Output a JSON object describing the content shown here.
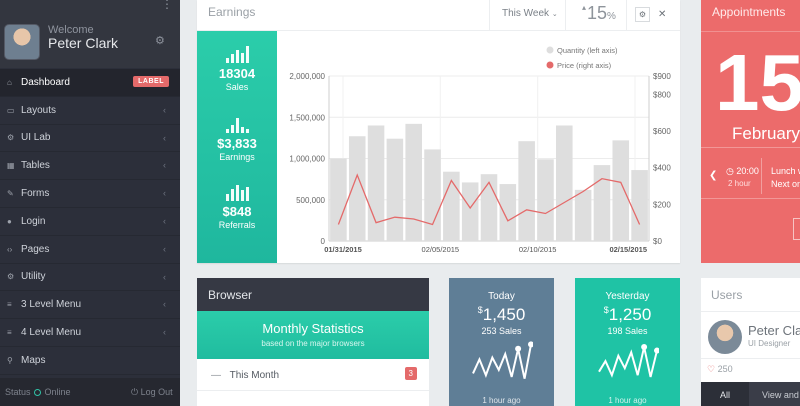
{
  "sidebar": {
    "welcome": "Welcome",
    "user_name": "Peter Clark",
    "items": [
      {
        "label": "Dashboard",
        "icon": "home-icon",
        "badge": "LABEL",
        "active": true
      },
      {
        "label": "Layouts",
        "icon": "monitor-icon"
      },
      {
        "label": "UI Lab",
        "icon": "cogs-icon"
      },
      {
        "label": "Tables",
        "icon": "table-icon"
      },
      {
        "label": "Forms",
        "icon": "edit-icon"
      },
      {
        "label": "Login",
        "icon": "user-icon"
      },
      {
        "label": "Pages",
        "icon": "code-icon"
      },
      {
        "label": "Utility",
        "icon": "cogs-icon"
      },
      {
        "label": "3 Level Menu",
        "icon": "stack-icon"
      },
      {
        "label": "4 Level Menu",
        "icon": "stack-icon"
      },
      {
        "label": "Maps",
        "icon": "map-marker-icon"
      }
    ],
    "footer": {
      "status_label": "Status",
      "status_value": "Online",
      "logout": "Log Out"
    }
  },
  "earnings": {
    "title": "Earnings",
    "period": "This Week",
    "percent": "15",
    "percent_unit": "%",
    "stats": [
      {
        "value": "18304",
        "label": "Sales"
      },
      {
        "value": "$3,833",
        "label": "Earnings"
      },
      {
        "value": "$848",
        "label": "Referrals"
      }
    ]
  },
  "chart_data": {
    "type": "bar",
    "x_tick_labels": [
      "01/31/2015",
      "02/05/2015",
      "02/10/2015",
      "02/15/2015"
    ],
    "series": [
      {
        "name": "Quantity (left axis)",
        "type": "bar",
        "axis": "left",
        "color": "#dedede",
        "values": [
          1000000,
          1270000,
          1400000,
          1240000,
          1420000,
          1110000,
          840000,
          710000,
          810000,
          690000,
          1210000,
          990000,
          1400000,
          620000,
          920000,
          1220000,
          860000
        ]
      },
      {
        "name": "Price (right axis)",
        "type": "line",
        "axis": "right",
        "color": "#e46a6a",
        "values": [
          90,
          360,
          100,
          130,
          120,
          90,
          330,
          180,
          320,
          110,
          170,
          150,
          210,
          270,
          340,
          320,
          90
        ]
      }
    ],
    "y_left": {
      "min": 0,
      "max": 2000000,
      "ticks": [
        "0",
        "500,000",
        "1,000,000",
        "1,500,000",
        "2,000,000"
      ]
    },
    "y_right": {
      "min": 0,
      "max": 900,
      "ticks": [
        "$0",
        "$200",
        "$400",
        "$600",
        "$800",
        "$900"
      ]
    },
    "legend_position": "top-right"
  },
  "appointments": {
    "title": "Appointments",
    "day": "15",
    "month": "February",
    "time": "20:00",
    "ago": "2 hour",
    "text1": "Lunch w",
    "text2": "Next on"
  },
  "browser": {
    "title": "Browser",
    "stats_title": "Monthly Statistics",
    "stats_subtitle": "based on the major browsers",
    "row_label": "This Month",
    "row_count": "3"
  },
  "today": {
    "label": "Today",
    "currency": "$",
    "amount": "1,450",
    "sales": "253 Sales",
    "ago": "1 hour ago",
    "sparkline": [
      12,
      28,
      10,
      30,
      16,
      34,
      8,
      40,
      6,
      45
    ]
  },
  "yesterday": {
    "label": "Yesterday",
    "currency": "$",
    "amount": "1,250",
    "sales": "198 Sales",
    "ago": "1 hour ago",
    "sparkline": [
      14,
      26,
      10,
      32,
      18,
      36,
      10,
      42,
      8,
      38
    ]
  },
  "users": {
    "title": "Users",
    "name": "Peter Clark",
    "role": "UI Designer",
    "likes": "250",
    "tab_all": "All",
    "tab_view": "View and"
  }
}
